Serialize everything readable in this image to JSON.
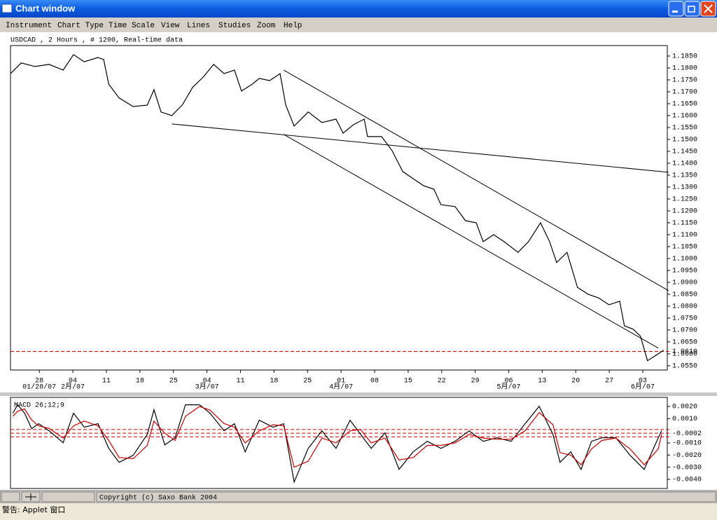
{
  "window": {
    "title": "Chart window"
  },
  "menu": [
    "Instrument",
    "Chart Type",
    "Time Scale",
    "View",
    "Lines",
    "Studies",
    "Zoom",
    "Help"
  ],
  "chart_data": [
    {
      "type": "line",
      "title": "USDCAD , 2 Hours , # 1200, Real-time data",
      "x": [
        -0.86,
        -0.54,
        -0.13,
        0.29,
        0.71,
        1.02,
        1.34,
        1.75,
        1.92,
        2.07,
        2.38,
        2.8,
        3.22,
        3.42,
        3.63,
        3.95,
        4.26,
        4.57,
        4.89,
        5.2,
        5.51,
        5.82,
        6.03,
        6.35,
        6.56,
        6.87,
        7.18,
        7.35,
        7.6,
        8.02,
        8.43,
        8.85,
        9.06,
        9.37,
        9.69,
        9.79,
        10.21,
        10.52,
        10.84,
        11.15,
        11.46,
        11.77,
        11.98,
        12.4,
        12.71,
        13.03,
        13.24,
        13.55,
        13.86,
        14.28,
        14.59,
        14.95,
        15.22,
        15.43,
        15.74,
        16.05,
        16.37,
        16.68,
        16.99,
        17.31,
        17.45,
        17.72,
        17.93,
        18.14,
        18.46,
        18.62
      ],
      "series": [
        {
          "color": "#000000",
          "values": [
            1.1776,
            1.1821,
            1.1806,
            1.1815,
            1.1791,
            1.1856,
            1.1826,
            1.1844,
            1.1835,
            1.1732,
            1.1674,
            1.1638,
            1.1644,
            1.1709,
            1.1615,
            1.16,
            1.1644,
            1.1718,
            1.1762,
            1.1815,
            1.1776,
            1.1791,
            1.1703,
            1.1732,
            1.1756,
            1.1747,
            1.1776,
            1.1644,
            1.1556,
            1.1615,
            1.1571,
            1.1585,
            1.1526,
            1.1562,
            1.1585,
            1.1512,
            1.1512,
            1.1453,
            1.1365,
            1.1335,
            1.1306,
            1.1291,
            1.1226,
            1.1218,
            1.1159,
            1.115,
            1.1071,
            1.11,
            1.1071,
            1.1026,
            1.1071,
            1.115,
            1.1071,
            1.0983,
            1.1026,
            1.0879,
            1.085,
            1.0835,
            1.0806,
            1.0821,
            1.0718,
            1.0703,
            1.0674,
            1.0571,
            1.06,
            1.0615
          ]
        }
      ],
      "trendlines": [
        {
          "x": [
            3.95,
            18.77
          ],
          "values": [
            1.1565,
            1.1362
          ]
        },
        {
          "x": [
            7.29,
            18.77
          ],
          "values": [
            1.1791,
            1.0865
          ]
        },
        {
          "x": [
            7.29,
            18.46
          ],
          "values": [
            1.1521,
            1.0624
          ]
        }
      ],
      "reference_lines": [
        {
          "value": 1.061,
          "label": "1.0610"
        }
      ],
      "reference_color": "#cc0000",
      "xlim": [
        -0.86,
        18.73
      ],
      "xticks": [
        {
          "value": 0,
          "label": "28"
        },
        {
          "value": 1,
          "label": "04"
        },
        {
          "value": 2,
          "label": "11"
        },
        {
          "value": 3,
          "label": "18"
        },
        {
          "value": 4,
          "label": "25"
        },
        {
          "value": 5,
          "label": "04"
        },
        {
          "value": 6,
          "label": "11"
        },
        {
          "value": 7,
          "label": "18"
        },
        {
          "value": 8,
          "label": "25"
        },
        {
          "value": 9,
          "label": "01"
        },
        {
          "value": 10,
          "label": "08"
        },
        {
          "value": 11,
          "label": "15"
        },
        {
          "value": 12,
          "label": "22"
        },
        {
          "value": 13,
          "label": "29"
        },
        {
          "value": 14,
          "label": "06"
        },
        {
          "value": 15,
          "label": "13"
        },
        {
          "value": 16,
          "label": "20"
        },
        {
          "value": 17,
          "label": "27"
        },
        {
          "value": 18,
          "label": "03"
        }
      ],
      "month_labels": [
        {
          "value": 0,
          "label": "01/28/07"
        },
        {
          "value": 1,
          "label": "2月/07"
        },
        {
          "value": 5,
          "label": "3月/07"
        },
        {
          "value": 9,
          "label": "4月/07"
        },
        {
          "value": 14,
          "label": "5月/07"
        },
        {
          "value": 18,
          "label": "6月/07"
        }
      ],
      "ylim": [
        1.0532,
        1.1894
      ],
      "yticks": [
        {
          "value": 1.055,
          "label": "1.0550"
        },
        {
          "value": 1.06,
          "label": "1.0600"
        },
        {
          "value": 1.065,
          "label": "1.0650"
        },
        {
          "value": 1.07,
          "label": "1.0700"
        },
        {
          "value": 1.075,
          "label": "1.0750"
        },
        {
          "value": 1.08,
          "label": "1.0800"
        },
        {
          "value": 1.085,
          "label": "1.0850"
        },
        {
          "value": 1.09,
          "label": "1.0900"
        },
        {
          "value": 1.095,
          "label": "1.0950"
        },
        {
          "value": 1.1,
          "label": "1.1000"
        },
        {
          "value": 1.105,
          "label": "1.1050"
        },
        {
          "value": 1.11,
          "label": "1.1100"
        },
        {
          "value": 1.115,
          "label": "1.1150"
        },
        {
          "value": 1.12,
          "label": "1.1200"
        },
        {
          "value": 1.125,
          "label": "1.1250"
        },
        {
          "value": 1.13,
          "label": "1.1300"
        },
        {
          "value": 1.135,
          "label": "1.1350"
        },
        {
          "value": 1.14,
          "label": "1.1400"
        },
        {
          "value": 1.145,
          "label": "1.1450"
        },
        {
          "value": 1.15,
          "label": "1.1500"
        },
        {
          "value": 1.155,
          "label": "1.1550"
        },
        {
          "value": 1.16,
          "label": "1.1600"
        },
        {
          "value": 1.165,
          "label": "1.1650"
        },
        {
          "value": 1.17,
          "label": "1.1700"
        },
        {
          "value": 1.175,
          "label": "1.1750"
        },
        {
          "value": 1.18,
          "label": "1.1800"
        },
        {
          "value": 1.185,
          "label": "1.1850"
        }
      ]
    },
    {
      "type": "line",
      "title": "MACD 26;12;9",
      "x": [
        -0.79,
        -0.65,
        -0.44,
        -0.23,
        -0.02,
        0.29,
        0.71,
        1.02,
        1.34,
        1.75,
        2.07,
        2.38,
        2.8,
        3.22,
        3.42,
        3.74,
        4.05,
        4.36,
        4.78,
        5.09,
        5.51,
        5.82,
        6.14,
        6.56,
        6.97,
        7.29,
        7.6,
        8.02,
        8.43,
        8.85,
        9.27,
        9.58,
        9.9,
        10.31,
        10.73,
        11.15,
        11.57,
        11.98,
        12.4,
        12.82,
        13.24,
        13.65,
        14.07,
        14.49,
        14.91,
        15.32,
        15.53,
        15.85,
        16.16,
        16.47,
        16.78,
        17.2,
        17.62,
        18.04,
        18.46,
        18.56
      ],
      "series": [
        {
          "color": "#000000",
          "values": [
            0.00145,
            0.00214,
            0.00145,
            0.00017,
            0.00058,
            0,
            -0.00098,
            0.00145,
            0.00029,
            0.00058,
            -0.00145,
            -0.0026,
            -0.00202,
            -0.00029,
            0.00173,
            -0.00116,
            -0.00058,
            0.00214,
            0.00214,
            0.00145,
            0,
            0.00058,
            -0.00173,
            0.00087,
            0.00029,
            0.00058,
            -0.00422,
            -0.00145,
            0,
            -0.00145,
            0.00087,
            -0.00029,
            -0.00145,
            -0.00017,
            -0.00318,
            -0.00173,
            -0.00087,
            -0.00145,
            -0.00087,
            0,
            -0.00087,
            -0.00058,
            -0.00087,
            0.00058,
            0.00202,
            -0.00029,
            -0.0026,
            -0.00173,
            -0.00318,
            -0.00087,
            -0.00058,
            -0.00058,
            -0.00202,
            -0.00318,
            -0.00058,
            0
          ]
        },
        {
          "color": "#cc0000",
          "values": [
            0.0012,
            0.0016,
            0.0018,
            0.0009,
            0.0004,
            0.0002,
            -0.0006,
            0.0004,
            0.0008,
            0.0004,
            -0.0008,
            -0.0022,
            -0.0023,
            -0.0012,
            0.0008,
            -0.0002,
            -0.0008,
            0.0012,
            0.002,
            0.0017,
            0.0006,
            0.0003,
            -0.001,
            0.0,
            0.0005,
            0.0004,
            -0.003,
            -0.0025,
            -0.0006,
            -0.001,
            0.0,
            0.0001,
            -0.001,
            -0.0006,
            -0.0024,
            -0.0022,
            -0.0012,
            -0.0012,
            -0.001,
            -0.0003,
            -0.0006,
            -0.0007,
            -0.0007,
            0.0,
            0.0015,
            0.0005,
            -0.0018,
            -0.002,
            -0.0028,
            -0.0015,
            -0.0008,
            -0.0006,
            -0.0015,
            -0.0028,
            -0.0015,
            -0.0003
          ]
        }
      ],
      "reference_lines": [
        0.0001,
        {
          "value": -0.0002,
          "label": "-0.0002"
        },
        -0.0005
      ],
      "reference_color": "#cc0000",
      "xlim": [
        -0.86,
        18.73
      ],
      "ylim": [
        -0.00475,
        0.00275
      ],
      "yticks": [
        {
          "value": 0.002,
          "label": "0.0020"
        },
        {
          "value": 0.001,
          "label": "0.0010"
        },
        {
          "value": -0.001,
          "label": "-0.0010"
        },
        {
          "value": -0.002,
          "label": "-0.0020"
        },
        {
          "value": -0.003,
          "label": "-0.0030"
        },
        {
          "value": -0.004,
          "label": "-0.0040"
        }
      ]
    }
  ],
  "footer": {
    "copyright": "Copyright (c) Saxo Bank 2004",
    "status": "警告: Applet 窗口"
  }
}
